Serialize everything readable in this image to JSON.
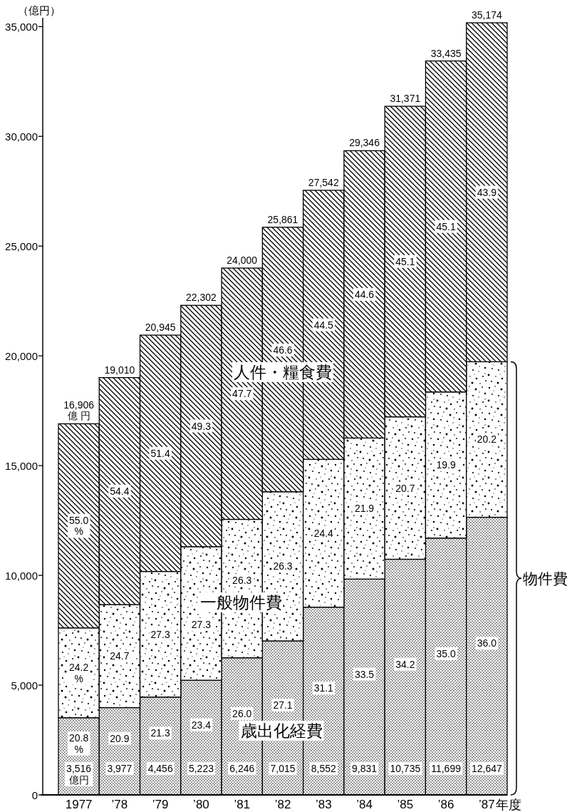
{
  "chart_data": {
    "type": "bar",
    "stacked": true,
    "ylabel": "（億円）",
    "xlabel": "年度",
    "categories": [
      "1977",
      "’78",
      "’79",
      "’80",
      "’81",
      "’82",
      "’83",
      "’84",
      "’85",
      "’86",
      "’87"
    ],
    "series": [
      {
        "name": "歳出化経費",
        "color": "#000000",
        "values": [
          3516,
          3977,
          4456,
          5223,
          6246,
          7015,
          8552,
          9831,
          10735,
          11699,
          12647
        ],
        "value_labels": [
          "3,516\n億円",
          "3,977",
          "4,456",
          "5,223",
          "6,246",
          "7,015",
          "8,552",
          "9,831",
          "10,735",
          "11,699",
          "12,647"
        ]
      },
      {
        "name": "一般物件費",
        "color": "#000000",
        "values": [
          4092,
          4692,
          5723,
          6084,
          6306,
          6795,
          6734,
          6427,
          6488,
          6657,
          7086
        ]
      },
      {
        "name": "人件・糧食費",
        "color": "#000000",
        "values": [
          9298,
          10341,
          10766,
          10995,
          11448,
          12051,
          12256,
          13088,
          14148,
          15079,
          15441
        ]
      }
    ],
    "totals": [
      "16,906\n億 円",
      "19,010",
      "20,945",
      "22,302",
      "24,000",
      "25,861",
      "27,542",
      "29,346",
      "31,371",
      "33,435",
      "35,174"
    ],
    "ylim": [
      0,
      35400
    ],
    "yticks": [
      0,
      {
        "value": 5000,
        "label": "5,000"
      },
      {
        "value": 10000,
        "label": "10,000"
      },
      {
        "value": 15000,
        "label": "15,000"
      },
      {
        "value": 20000,
        "label": "20,000"
      },
      {
        "value": 25000,
        "label": "25,000"
      },
      {
        "value": 30000,
        "label": "30,000"
      },
      {
        "value": 35000,
        "label": "35,000"
      }
    ],
    "annotations": [
      "20.8\n%",
      "24.2\n%",
      "55.0\n%",
      "20.9",
      "24.7",
      "54.4",
      "21.3",
      "27.3",
      "51.4",
      "23.4",
      "27.3",
      "49.3",
      "26.0",
      "26.3",
      "47.7",
      "27.1",
      "26.3",
      "46.6",
      "31.1",
      "24.4",
      "44.5",
      "33.5",
      "21.9",
      "44.6",
      "34.2",
      "20.7",
      "45.1",
      "35.0",
      "19.9",
      "45.1",
      "36.0",
      "20.2",
      "43.9",
      "物件費"
    ]
  }
}
